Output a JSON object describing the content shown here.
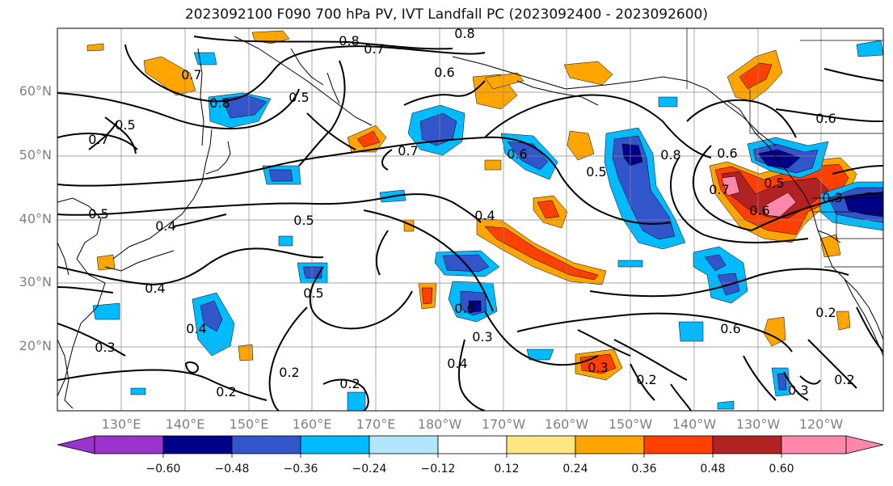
{
  "title": "2023092100 F090 700 hPa PV, IVT Landfall PC (2023092400 - 2023092600)",
  "lat_labels": [
    "60°N",
    "50°N",
    "40°N",
    "30°N",
    "20°N"
  ],
  "lon_labels": [
    "130°E",
    "140°E",
    "150°E",
    "160°E",
    "170°E",
    "180°W",
    "170°W",
    "160°W",
    "150°W",
    "140°W",
    "130°W",
    "120°W"
  ],
  "colorbar": {
    "tick_labels": [
      "−0.60",
      "−0.48",
      "−0.36",
      "−0.24",
      "−0.12",
      "0.12",
      "0.24",
      "0.36",
      "0.48",
      "0.60"
    ],
    "colors": [
      "#9933cc",
      "#000088",
      "#3355cc",
      "#00bbff",
      "#b3e5ff",
      "#ffffff",
      "#ffe680",
      "#ffa500",
      "#ff4000",
      "#b22222",
      "#ff88aa"
    ]
  },
  "contour_labels": [
    "0.8",
    "0.7",
    "0.8",
    "0.7",
    "0.6",
    "0.8",
    "0.5",
    "0.5",
    "0.7",
    "0.7",
    "0.6",
    "0.5",
    "0.8",
    "0.7",
    "0.6",
    "0.6",
    "0.4",
    "0.5",
    "0.4",
    "0.5",
    "0.4",
    "0.6",
    "0.6",
    "0.5",
    "0.4",
    "0.3",
    "0.2",
    "0.2",
    "0.4",
    "0.3",
    "0.3",
    "0.2",
    "0.2",
    "0.3",
    "0.3",
    "0.2",
    "0.6",
    "0.2",
    "0.5"
  ]
}
